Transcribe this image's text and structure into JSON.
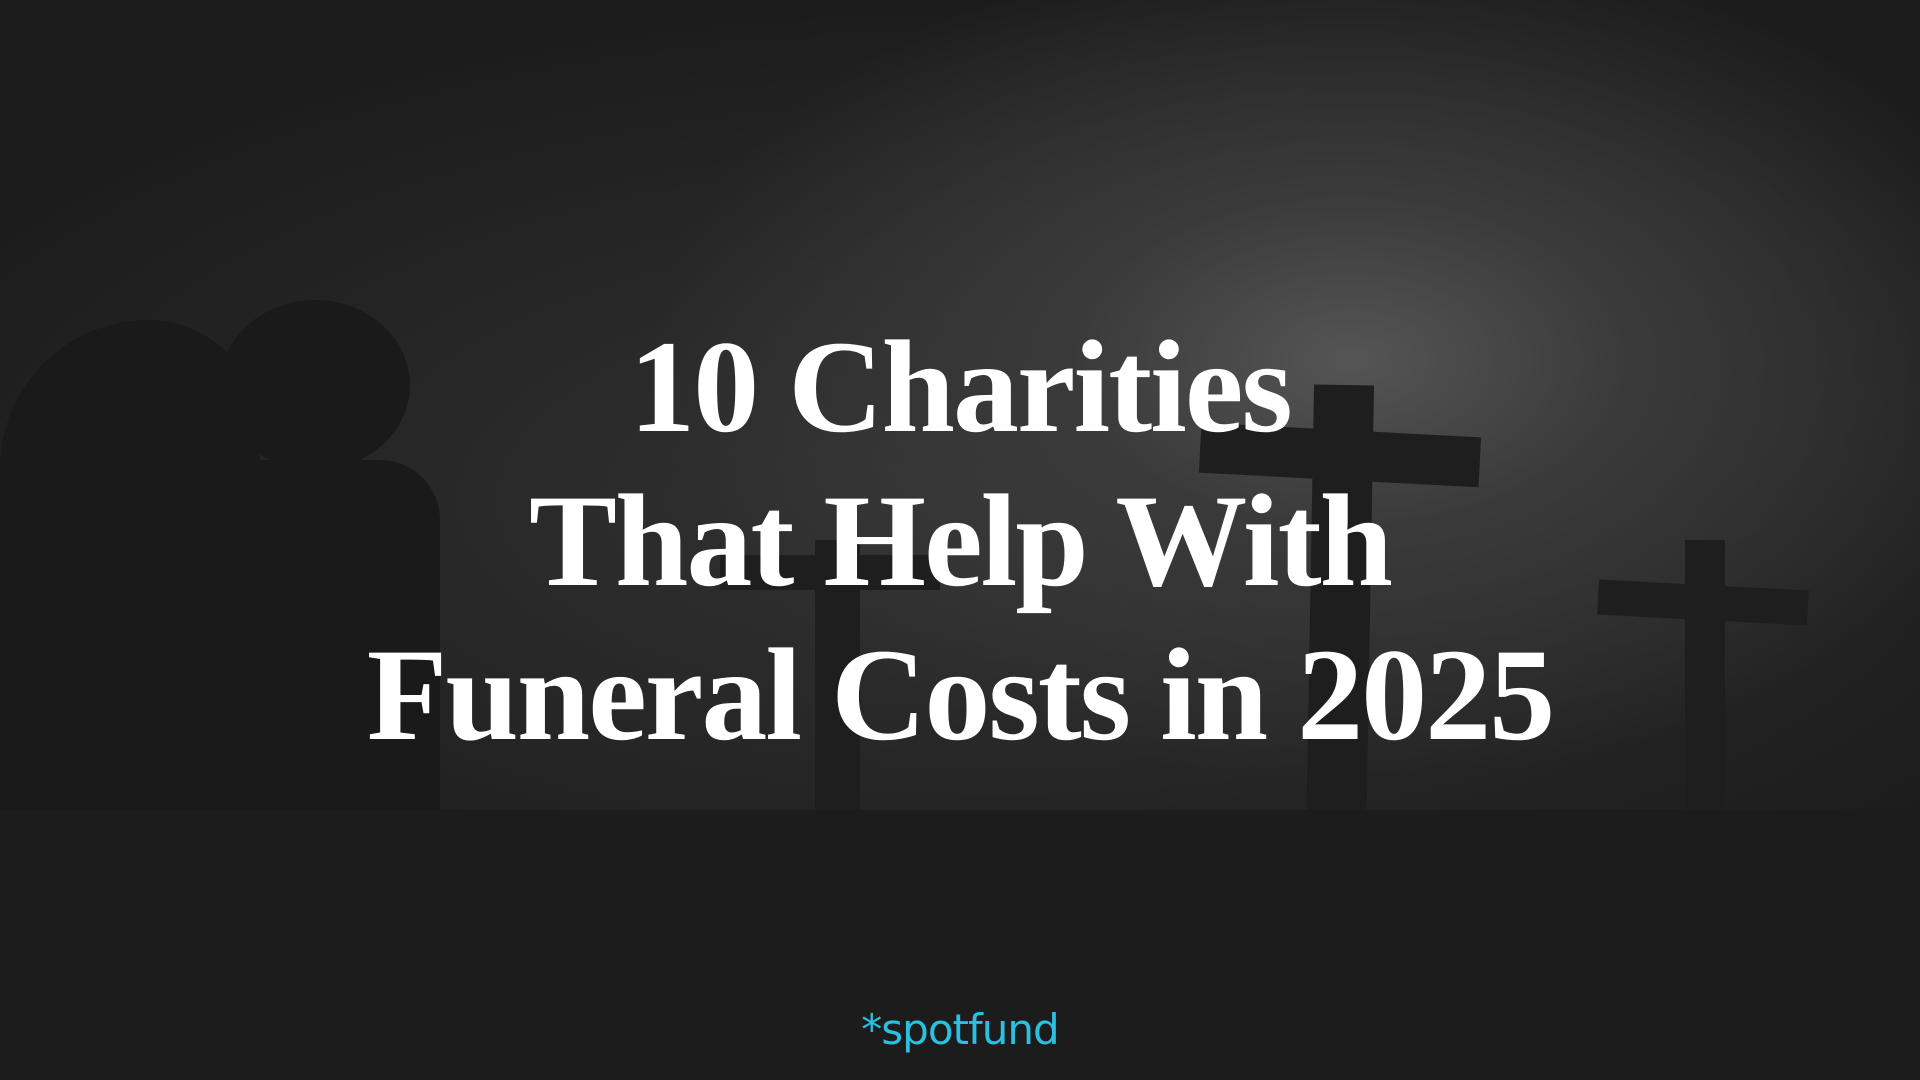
{
  "title": {
    "lines": [
      "10 Charities",
      "That Help With",
      "Funeral Costs in 2025"
    ]
  },
  "brand": {
    "logo_text": "*spotfund",
    "color": "#2bbfe0"
  },
  "colors": {
    "background": "#1c1c1c",
    "title": "#ffffff"
  }
}
